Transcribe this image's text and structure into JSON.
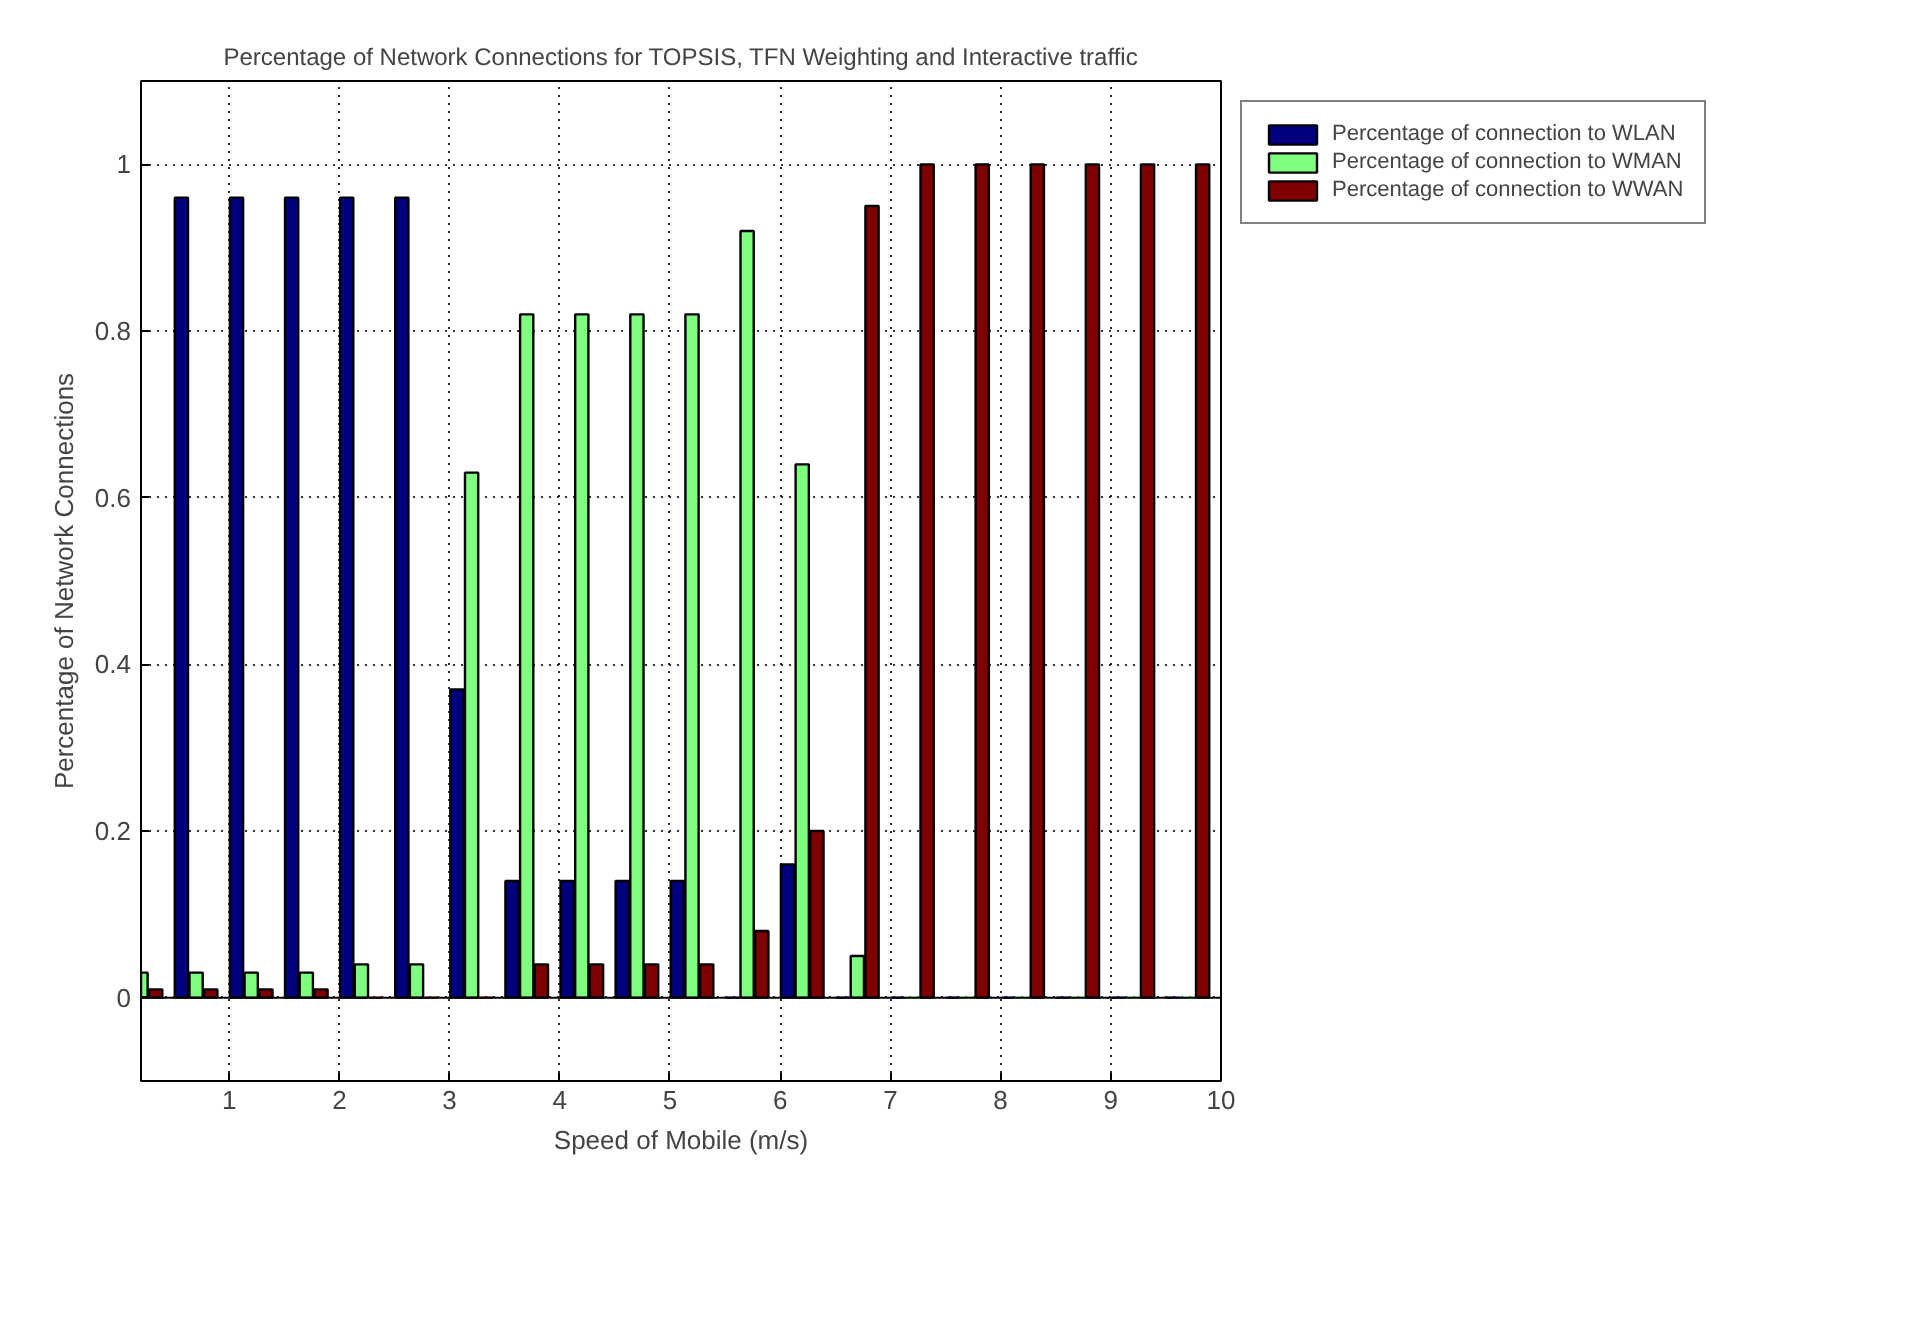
{
  "chart_data": {
    "type": "bar",
    "title": "Percentage of Network Connections for TOPSIS, TFN Weighting and Interactive traffic",
    "xlabel": "Speed of Mobile (m/s)",
    "ylabel": "Percentage of Network Connections",
    "x": [
      0.2,
      0.7,
      1.2,
      1.7,
      2.2,
      2.7,
      3.2,
      3.7,
      4.2,
      4.7,
      5.2,
      5.7,
      6.2,
      6.7,
      7.2,
      7.7,
      8.2,
      8.7,
      9.2,
      9.7
    ],
    "series": [
      {
        "name": "Percentage of connection to WLAN",
        "color": "#00007f",
        "values": [
          null,
          0.96,
          0.96,
          0.96,
          0.96,
          0.96,
          0.37,
          0.14,
          0.14,
          0.14,
          0.14,
          0,
          0.16,
          0,
          0,
          0,
          0,
          0,
          0,
          0
        ]
      },
      {
        "name": "Percentage of connection to WMAN",
        "color": "#7fff7f",
        "values": [
          0.03,
          0.03,
          0.03,
          0.03,
          0.04,
          0.04,
          0.63,
          0.82,
          0.82,
          0.82,
          0.82,
          0.92,
          0.64,
          0.05,
          0,
          0,
          0,
          0,
          0,
          0
        ]
      },
      {
        "name": "Percentage of connection to WWAN",
        "color": "#7f0000",
        "values": [
          0.01,
          0.01,
          0.01,
          0.01,
          0,
          0,
          0,
          0.04,
          0.04,
          0.04,
          0.04,
          0.08,
          0.2,
          0.95,
          1,
          1,
          1,
          1,
          1,
          1
        ]
      }
    ],
    "xlim": [
      0.2,
      10
    ],
    "xticks": [
      1,
      2,
      3,
      4,
      5,
      6,
      7,
      8,
      9,
      10
    ],
    "ylim": [
      -0.1,
      1.1
    ],
    "yticks": [
      0,
      0.2,
      0.4,
      0.6,
      0.8,
      1
    ],
    "grid": true,
    "legend": "right"
  }
}
